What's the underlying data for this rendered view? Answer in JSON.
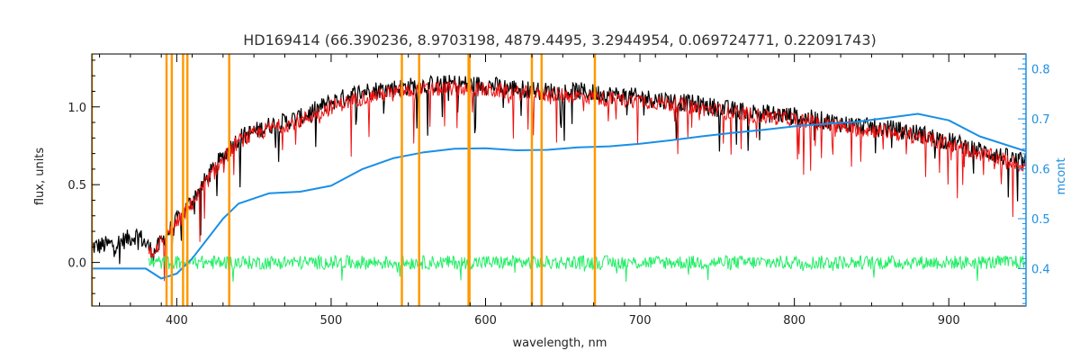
{
  "chart_data": {
    "type": "line",
    "title": "HD169414    (66.390236, 8.9703198, 4879.4495, 3.2944954, 0.069724771, 0.22091743)",
    "xlabel": "wavelength, nm",
    "ylabel": "flux, units",
    "y2label": "mcont",
    "xlim": [
      345,
      950
    ],
    "ylim": [
      -0.28,
      1.34
    ],
    "y2lim": [
      0.325,
      0.83
    ],
    "xticks": [
      "400",
      "500",
      "600",
      "700",
      "800",
      "900"
    ],
    "yticks": [
      "0.0",
      "0.5",
      "1.0"
    ],
    "y2ticks": [
      "0.4",
      "0.5",
      "0.6",
      "0.7",
      "0.8"
    ],
    "grid": false,
    "vlines_nm": [
      345,
      393.4,
      396.8,
      404.1,
      406.9,
      434.0,
      545.8,
      557.0,
      589.0,
      589.6,
      630.0,
      636.3,
      670.8
    ],
    "series": [
      {
        "color": "#000000",
        "axis": "left",
        "x": [
          345,
          360,
          375,
          385,
          395,
          410,
          425,
          440,
          460,
          480,
          500,
          520,
          540,
          560,
          580,
          600,
          620,
          640,
          660,
          680,
          700,
          720,
          740,
          760,
          780,
          800,
          820,
          840,
          860,
          880,
          900,
          920,
          950
        ],
        "values": [
          0.1,
          0.12,
          0.18,
          0.06,
          0.2,
          0.4,
          0.62,
          0.8,
          0.88,
          0.93,
          1.03,
          1.1,
          1.12,
          1.14,
          1.15,
          1.14,
          1.12,
          1.1,
          1.1,
          1.08,
          1.06,
          1.04,
          1.01,
          0.98,
          0.96,
          0.94,
          0.91,
          0.88,
          0.86,
          0.83,
          0.78,
          0.72,
          0.64
        ]
      },
      {
        "color": "#ee1111",
        "axis": "left",
        "x": [
          382,
          395,
          410,
          425,
          440,
          460,
          480,
          500,
          520,
          540,
          560,
          580,
          600,
          620,
          640,
          660,
          680,
          700,
          720,
          740,
          760,
          780,
          800,
          820,
          840,
          860,
          880,
          900,
          920,
          950
        ],
        "values": [
          0.05,
          0.18,
          0.38,
          0.6,
          0.78,
          0.86,
          0.91,
          1.0,
          1.06,
          1.09,
          1.11,
          1.12,
          1.11,
          1.09,
          1.08,
          1.07,
          1.05,
          1.04,
          1.02,
          0.99,
          0.96,
          0.94,
          0.92,
          0.89,
          0.86,
          0.84,
          0.81,
          0.76,
          0.7,
          0.62
        ]
      },
      {
        "color": "#1a8fe6",
        "axis": "right",
        "x": [
          345,
          380,
          390,
          400,
          410,
          420,
          430,
          440,
          460,
          480,
          500,
          520,
          540,
          560,
          580,
          600,
          620,
          640,
          660,
          680,
          700,
          720,
          740,
          760,
          780,
          800,
          820,
          840,
          860,
          880,
          900,
          920,
          950
        ],
        "values": [
          0.4,
          0.4,
          0.38,
          0.39,
          0.42,
          0.46,
          0.5,
          0.53,
          0.551,
          0.554,
          0.566,
          0.599,
          0.621,
          0.633,
          0.64,
          0.641,
          0.637,
          0.638,
          0.643,
          0.645,
          0.65,
          0.657,
          0.665,
          0.672,
          0.678,
          0.685,
          0.69,
          0.694,
          0.702,
          0.71,
          0.697,
          0.665,
          0.635
        ]
      },
      {
        "color": "#22ee66",
        "axis": "left",
        "x": [
          382,
          950
        ],
        "values": [
          0.0,
          0.0
        ]
      }
    ]
  }
}
